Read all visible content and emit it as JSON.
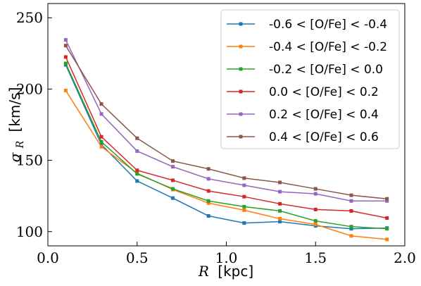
{
  "chart_data": {
    "type": "line",
    "x": [
      0.1,
      0.3,
      0.5,
      0.7,
      0.9,
      1.1,
      1.3,
      1.5,
      1.7,
      1.9
    ],
    "xlabel": {
      "symbol": "R",
      "unit": "[kpc]"
    },
    "ylabel": {
      "symbol": "σ",
      "subscript": "R",
      "unit": "[km/s]"
    },
    "xlim": [
      0.0,
      2.0
    ],
    "ylim": [
      90,
      260
    ],
    "xticks": [
      0.0,
      0.5,
      1.0,
      1.5,
      2.0
    ],
    "xtick_labels": [
      "0.0",
      "0.5",
      "1.0",
      "1.5",
      "2.0"
    ],
    "yticks": [
      100,
      150,
      200,
      250
    ],
    "ytick_labels": [
      "100",
      "150",
      "200",
      "250"
    ],
    "grid": false,
    "legend_position": "top-right",
    "series": [
      {
        "name": "-0.6 < [O/Fe] < -0.4",
        "color": "#1f77b4",
        "values": [
          217,
          161,
          135.5,
          123.5,
          111,
          106,
          107,
          104,
          102,
          102.5
        ]
      },
      {
        "name": "-0.4 < [O/Fe] < -0.2",
        "color": "#ff7f0e",
        "values": [
          199,
          159.5,
          141,
          129.5,
          120,
          115,
          109,
          105,
          97,
          94.5
        ]
      },
      {
        "name": "-0.2 < [O/Fe] < 0.0",
        "color": "#2ca02c",
        "values": [
          218,
          163,
          140.5,
          130,
          121.5,
          117.5,
          114.5,
          107.5,
          103.5,
          102
        ]
      },
      {
        "name": "0.0 < [O/Fe] < 0.2",
        "color": "#d62728",
        "values": [
          222.5,
          166.5,
          143,
          136,
          128.5,
          124.5,
          119.5,
          115.5,
          114.5,
          109.5
        ]
      },
      {
        "name": "0.2 < [O/Fe] < 0.4",
        "color": "#9467bd",
        "values": [
          234.5,
          182.5,
          156.5,
          145.5,
          137,
          132.5,
          128,
          126.5,
          121.5,
          121.5
        ]
      },
      {
        "name": "0.4 < [O/Fe] < 0.6",
        "color": "#8c564b",
        "values": [
          230.5,
          189.5,
          165.5,
          149.5,
          144,
          137.5,
          134.5,
          130,
          125.5,
          123
        ]
      }
    ]
  }
}
